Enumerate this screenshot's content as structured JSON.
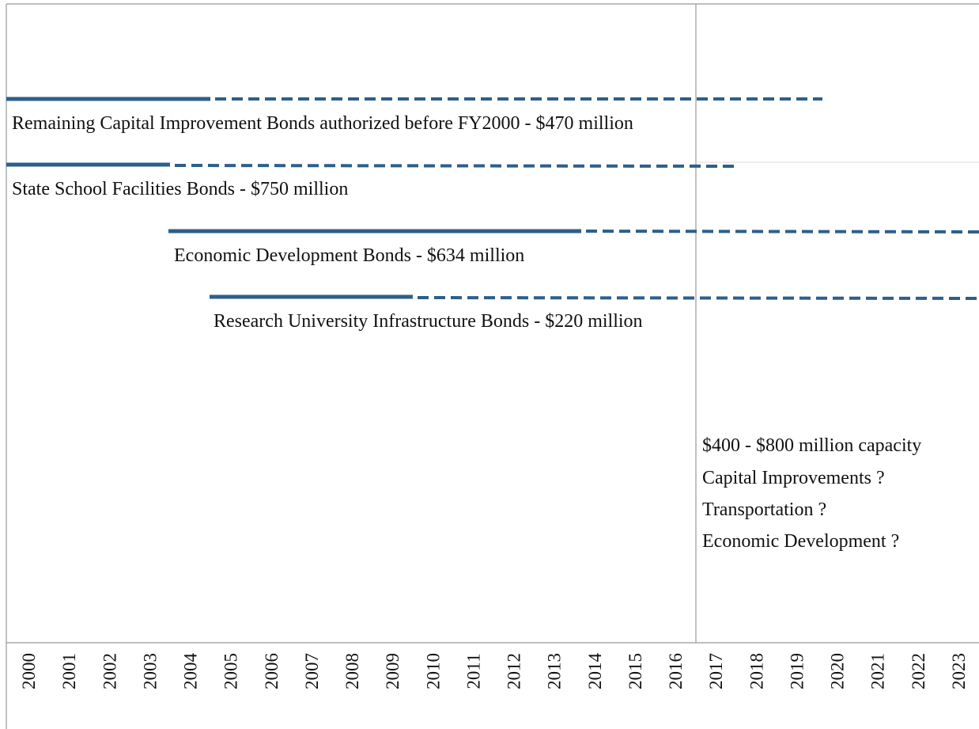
{
  "bonds": [
    {
      "label": "Remaining Capital Improvement Bonds authorized before FY2000 - $470 million"
    },
    {
      "label": "State School Facilities Bonds - $750 million"
    },
    {
      "label": "Economic Development Bonds - $634 million"
    },
    {
      "label": "Research University Infrastructure Bonds - $220 million"
    }
  ],
  "capacity": [
    "$400 - $800 million capacity",
    "Capital Improvements ?",
    "Transportation ?",
    "Economic Development ?"
  ],
  "years": [
    "2000",
    "2001",
    "2002",
    "2003",
    "2004",
    "2005",
    "2006",
    "2007",
    "2008",
    "2009",
    "2010",
    "2011",
    "2012",
    "2013",
    "2014",
    "2015",
    "2016",
    "2017",
    "2018",
    "2019",
    "2020",
    "2021",
    "2022",
    "2023"
  ]
}
